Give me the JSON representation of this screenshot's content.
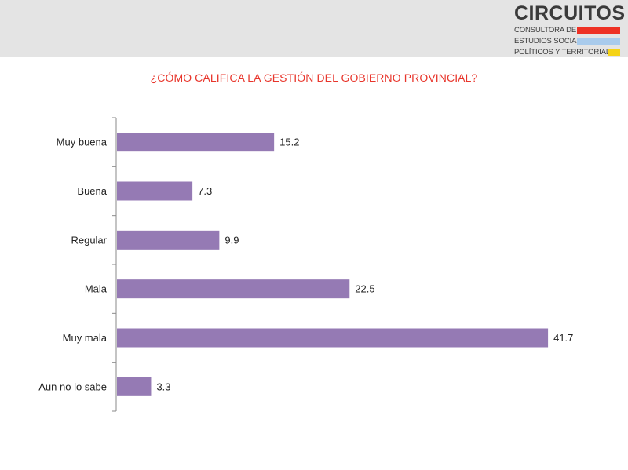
{
  "logo": {
    "name": "CIRCUITOS",
    "line1": "CONSULTORA DE",
    "line2": "ESTUDIOS SOCIALES,",
    "line3": "POLÍTICOS Y TERRITORIALES",
    "colors": [
      "#ee3124",
      "#a9cbec",
      "#f5d316"
    ]
  },
  "chart_data": {
    "type": "bar",
    "orientation": "horizontal",
    "title": "¿CÓMO CALIFICA LA GESTIÓN DEL GOBIERNO PROVINCIAL?",
    "categories": [
      "Muy buena",
      "Buena",
      "Regular",
      "Mala",
      "Muy mala",
      "Aun no lo sabe"
    ],
    "values": [
      15.2,
      7.3,
      9.9,
      22.5,
      41.7,
      3.3
    ],
    "value_labels": [
      "15.2",
      "7.3",
      "9.9",
      "22.5",
      "41.7",
      "3.3"
    ],
    "xlim": [
      0,
      42.3
    ],
    "grid": false,
    "bar_color": "#957ab4",
    "title_color": "#e8352b"
  }
}
